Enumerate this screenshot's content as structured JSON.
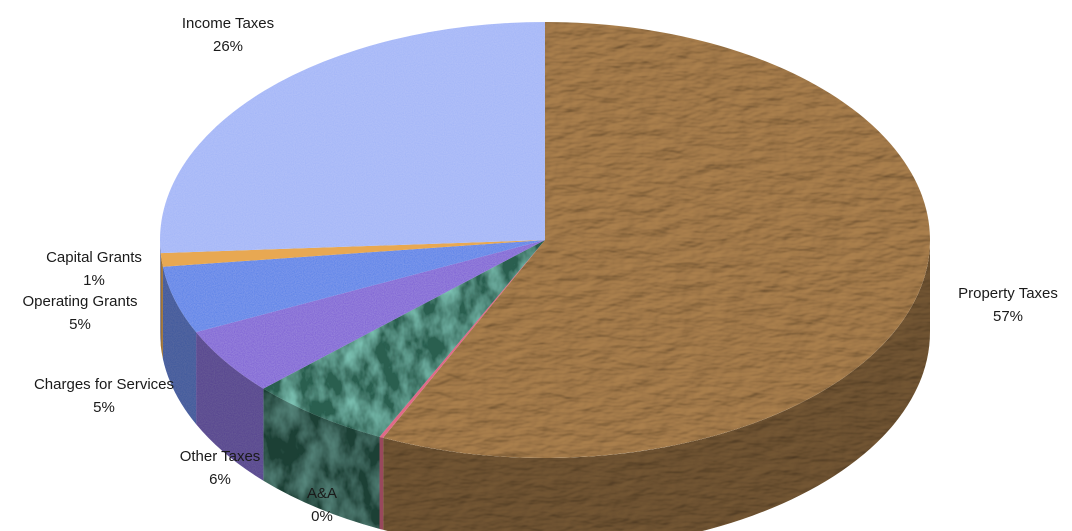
{
  "chart_data": {
    "type": "pie",
    "style": "3d",
    "title": "",
    "slices": [
      {
        "name": "Property Taxes",
        "value": 57,
        "value_label": "57%",
        "color": "#b89870"
      },
      {
        "name": "A&A",
        "value": 0,
        "value_label": "0%",
        "color": "#e06a88"
      },
      {
        "name": "Other Taxes",
        "value": 6,
        "value_label": "6%",
        "color": "#2c5e50"
      },
      {
        "name": "Charges for Services",
        "value": 5,
        "value_label": "5%",
        "color": "#7f62d6"
      },
      {
        "name": "Operating Grants",
        "value": 5,
        "value_label": "5%",
        "color": "#5a82e8"
      },
      {
        "name": "Capital Grants",
        "value": 1,
        "value_label": "1%",
        "color": "#e8a852"
      },
      {
        "name": "Income Taxes",
        "value": 26,
        "value_label": "26%",
        "color": "#a3b5f8"
      }
    ]
  }
}
